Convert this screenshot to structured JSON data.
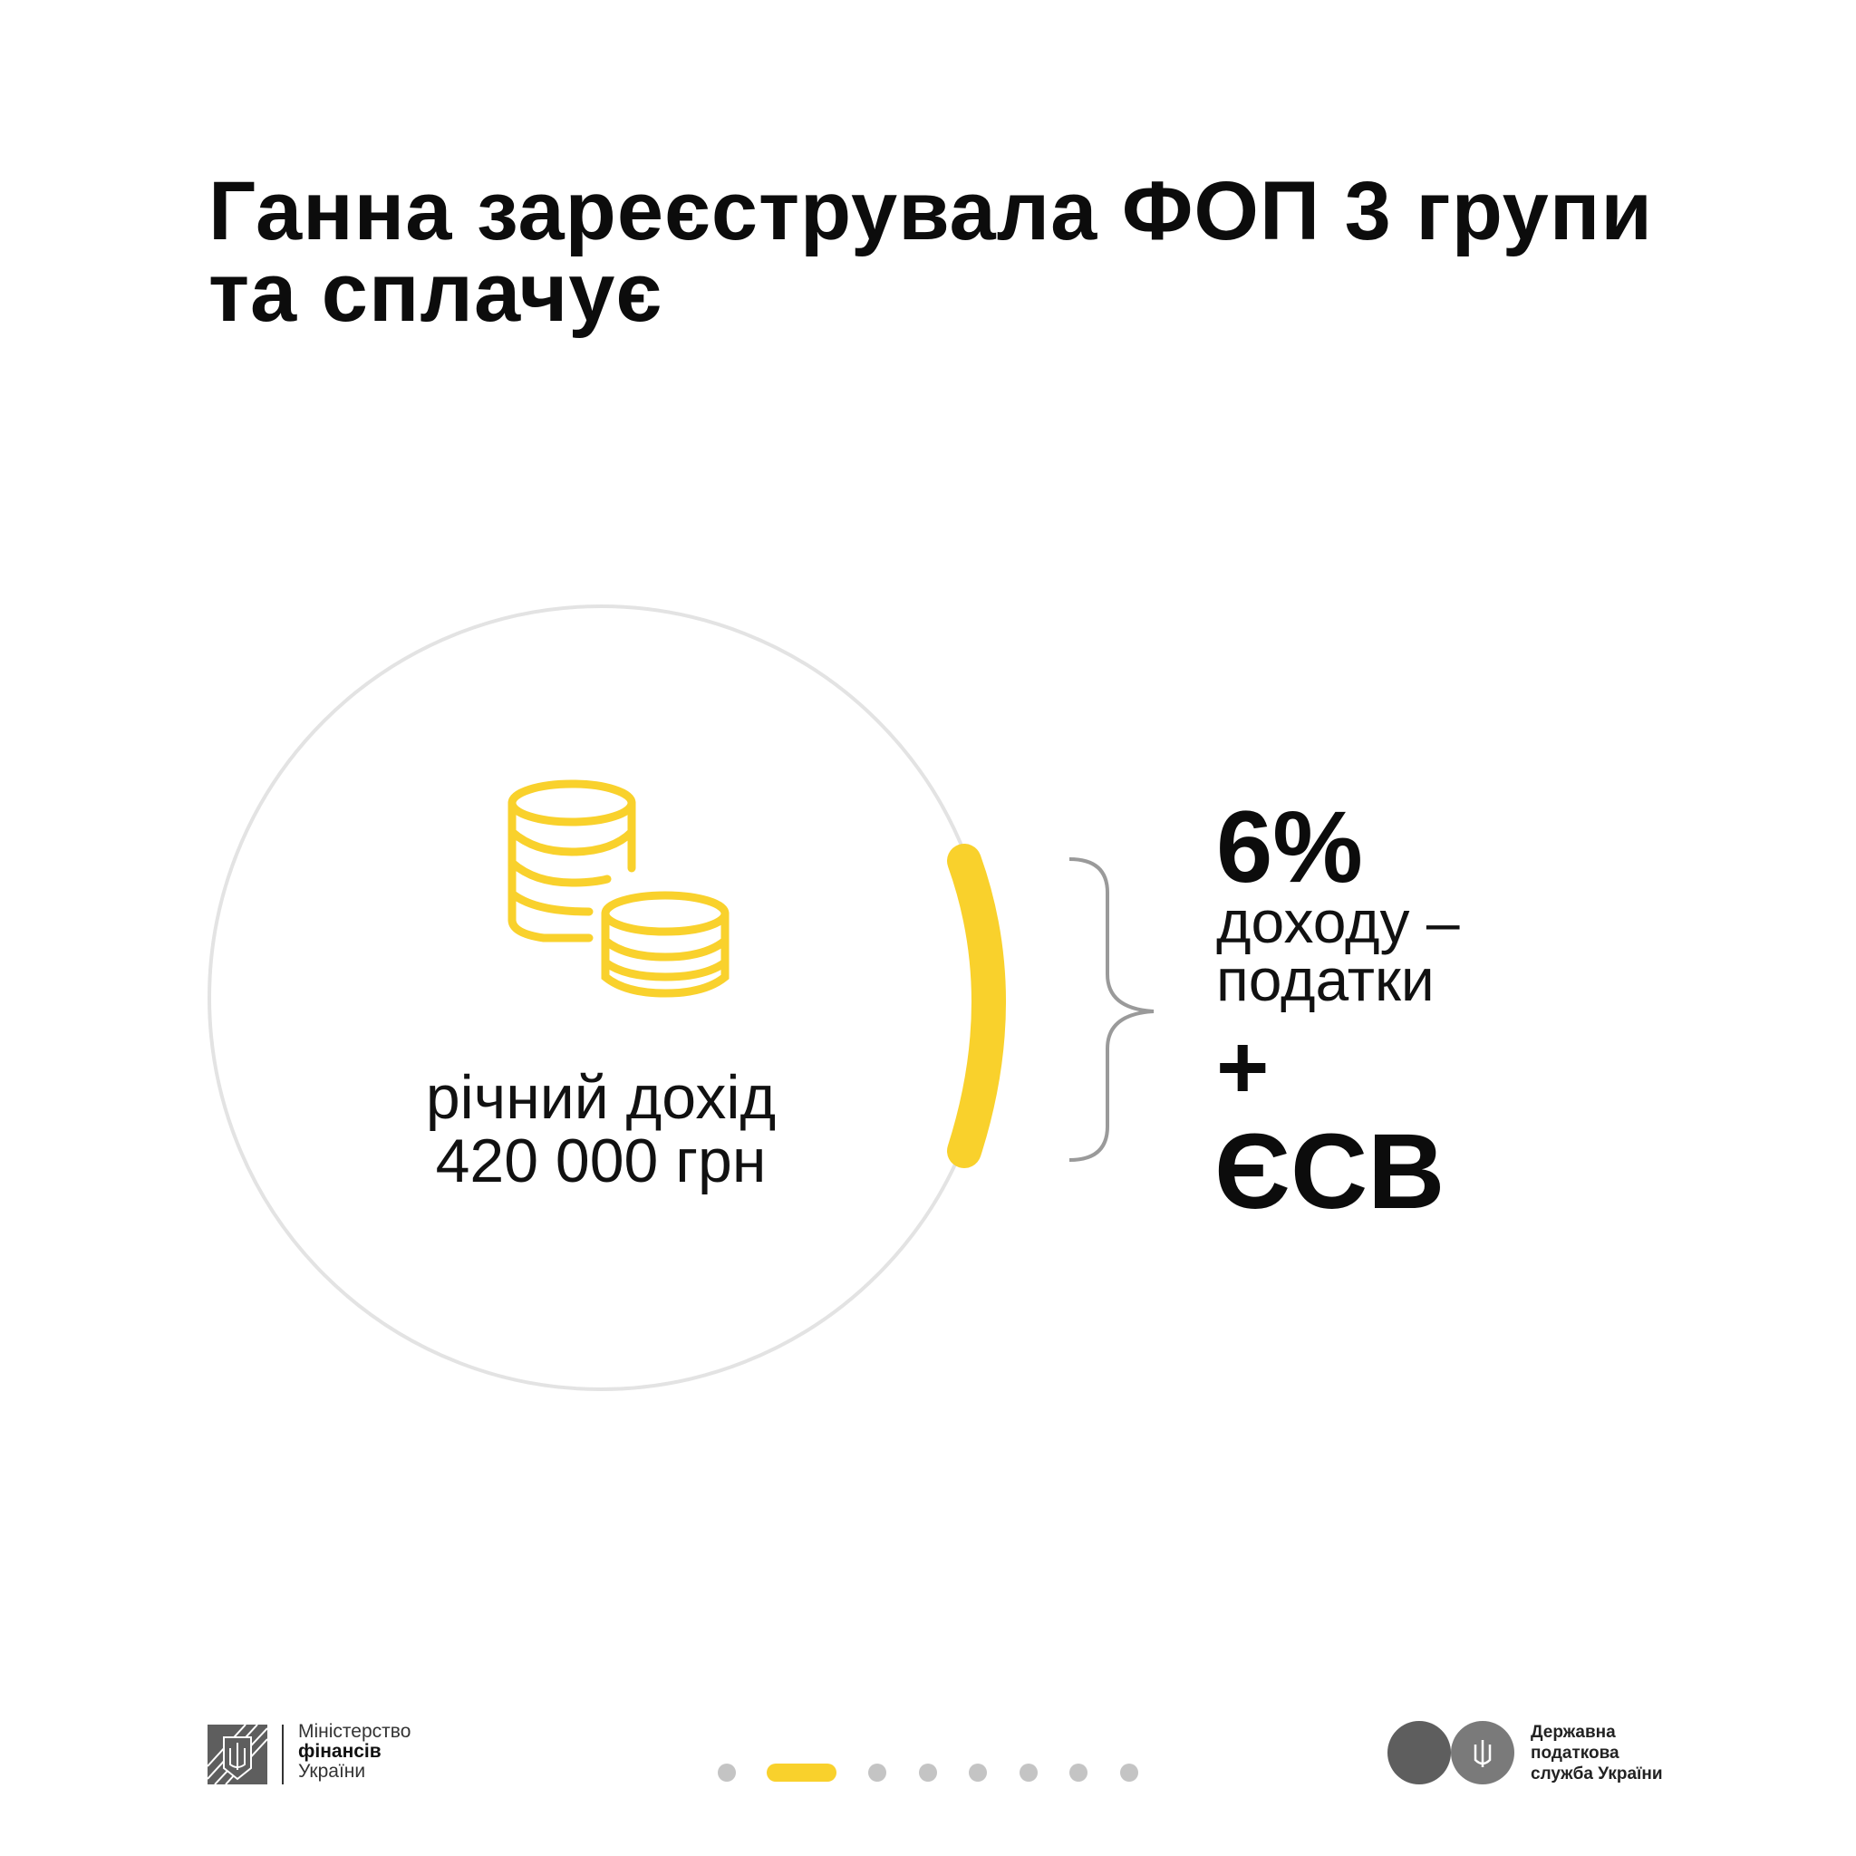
{
  "title": {
    "line1": "Ганна зареєструвала ФОП 3 групи",
    "line2": "та сплачує"
  },
  "income": {
    "line1": "річний дохід",
    "line2": "420 000 грн",
    "icon": "coins-icon"
  },
  "taxes": {
    "rate": "6%",
    "line1": "доходу –",
    "line2": "податки",
    "plus": "+",
    "esv": "ЄСВ"
  },
  "footer": {
    "ministry": {
      "line1": "Міністерство",
      "line2": "фінансів",
      "line3": "України"
    },
    "tax_service": {
      "line1": "Державна",
      "line2": "податкова",
      "line3": "служба України"
    },
    "pagination": {
      "total": 8,
      "active": 2
    }
  },
  "colors": {
    "accent": "#f9d12c",
    "circle": "#e3e3e3",
    "brace": "#9a9a9a",
    "dot": "#c4c4c4",
    "logo_gray": "#5e5e5e"
  }
}
